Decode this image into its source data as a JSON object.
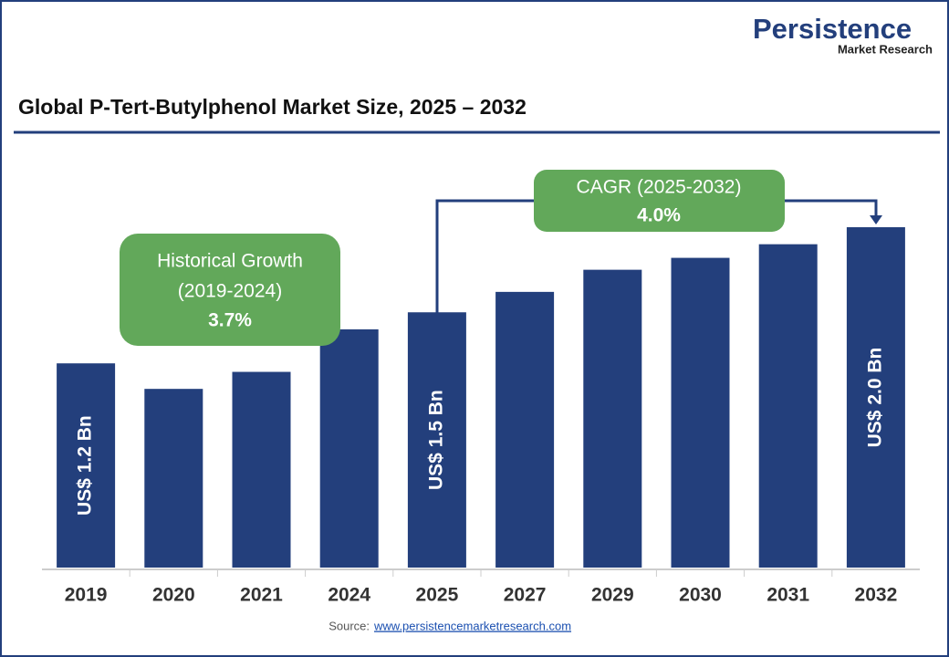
{
  "logo": {
    "name": "Persistence",
    "tagline": "Market Research"
  },
  "chart_data": {
    "type": "bar",
    "title": "Global P-Tert-Butylphenol Market Size, 2025 – 2032",
    "categories": [
      "2019",
      "2020",
      "2021",
      "2024",
      "2025",
      "2027",
      "2029",
      "2030",
      "2031",
      "2032"
    ],
    "values": [
      1.2,
      1.05,
      1.15,
      1.4,
      1.5,
      1.62,
      1.75,
      1.82,
      1.9,
      2.0
    ],
    "value_labels": [
      "US$ 1.2 Bn",
      null,
      null,
      null,
      "US$ 1.5 Bn",
      null,
      null,
      null,
      null,
      "US$ 2.0 Bn"
    ],
    "color": "#233f7c",
    "annotations": {
      "historical": {
        "title": "Historical Growth",
        "period": "(2019-2024)",
        "value": "3.7%"
      },
      "cagr": {
        "title": "CAGR (2025-2032)",
        "value": "4.0%"
      }
    },
    "source": {
      "label": "Source:",
      "url": "www.persistencemarketresearch.com"
    }
  }
}
